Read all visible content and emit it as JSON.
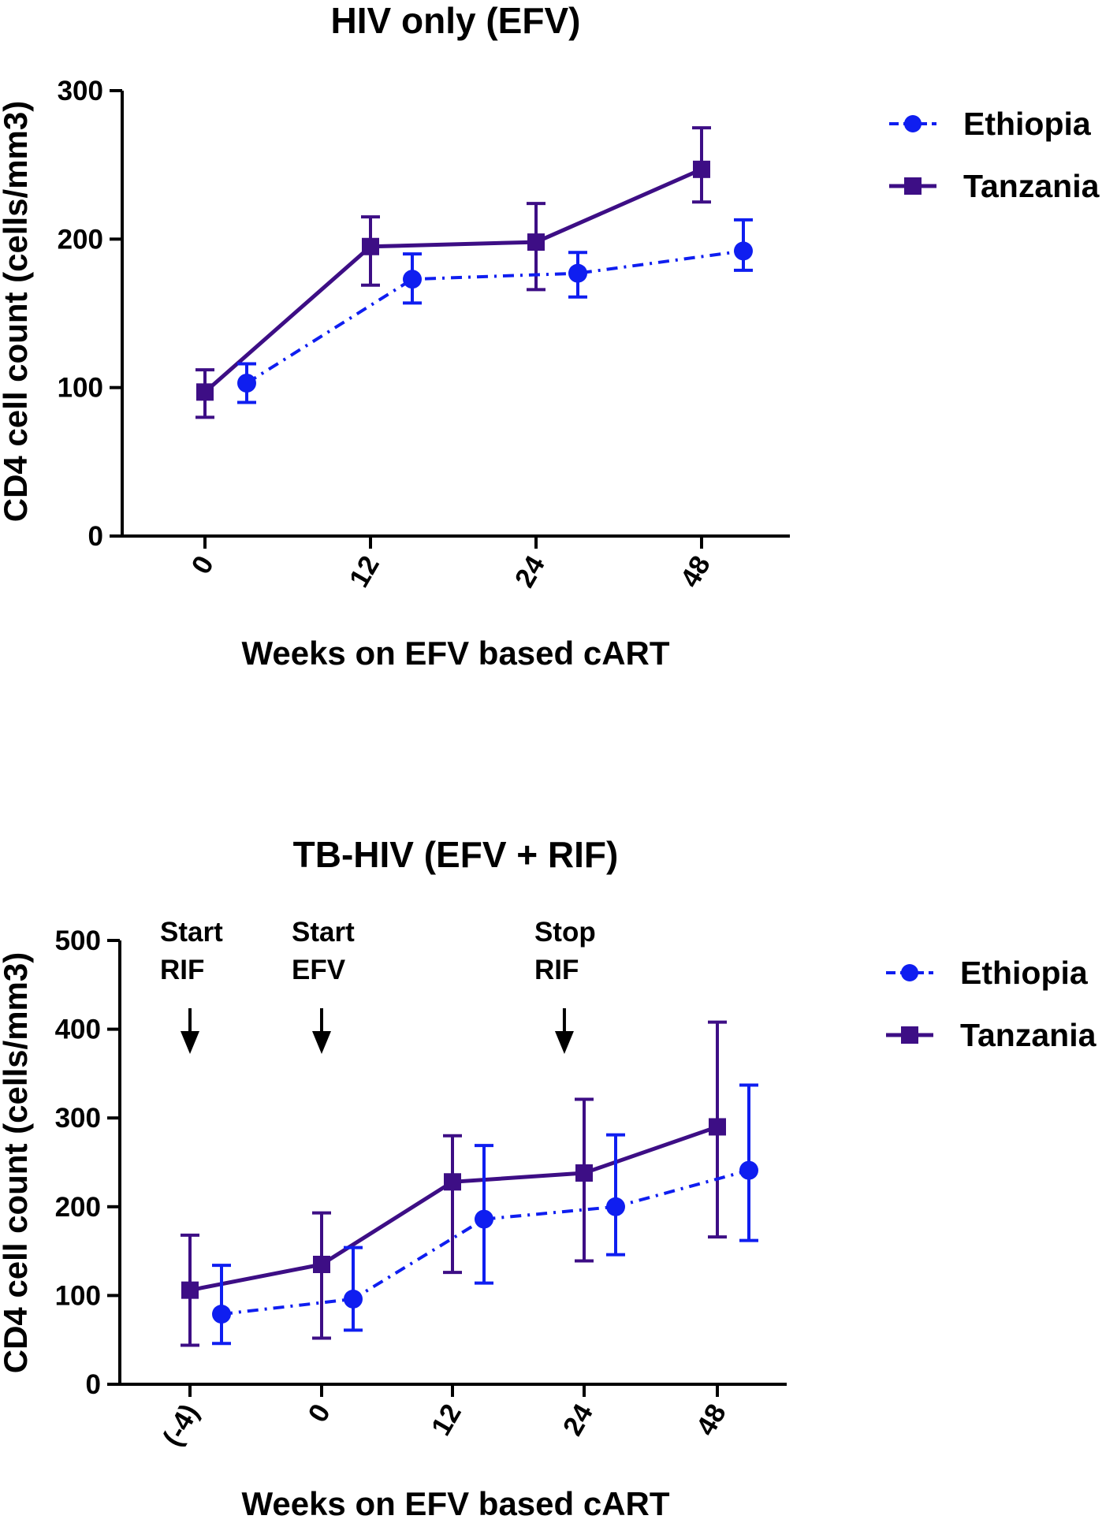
{
  "chart_data": [
    {
      "type": "line",
      "title": "HIV only (EFV)",
      "xlabel": "Weeks on EFV based cART",
      "ylabel": "CD4 cell count (cells/mm3)",
      "categories": [
        "0",
        "12",
        "24",
        "48"
      ],
      "ylim": [
        0,
        300
      ],
      "yticks": [
        0,
        100,
        200,
        300
      ],
      "grid": false,
      "legend_position": "top-right",
      "series": [
        {
          "name": "Ethiopia",
          "color": "#0f1ef0",
          "marker": "circle",
          "line_style": "dash-dot",
          "values": [
            103,
            173,
            177,
            192
          ],
          "error_low": [
            90,
            157,
            161,
            179
          ],
          "error_high": [
            116,
            190,
            191,
            213
          ]
        },
        {
          "name": "Tanzania",
          "color": "#3d0e85",
          "marker": "square",
          "line_style": "solid",
          "values": [
            97,
            195,
            198,
            247
          ],
          "error_low": [
            80,
            169,
            166,
            225
          ],
          "error_high": [
            112,
            215,
            224,
            275
          ]
        }
      ]
    },
    {
      "type": "line",
      "title": "TB-HIV (EFV + RIF)",
      "xlabel": "Weeks on EFV based cART",
      "ylabel": "CD4 cell count (cells/mm3)",
      "categories": [
        "(-4)",
        "0",
        "12",
        "24",
        "48"
      ],
      "ylim": [
        0,
        500
      ],
      "yticks": [
        0,
        100,
        200,
        300,
        400,
        500
      ],
      "grid": false,
      "legend_position": "top-right",
      "annotations": [
        {
          "lines": [
            "Start",
            "RIF"
          ],
          "category_index": 0
        },
        {
          "lines": [
            "Start",
            "EFV"
          ],
          "category_index": 1
        },
        {
          "lines": [
            "Stop",
            "RIF"
          ],
          "category_index": 2.85
        }
      ],
      "series": [
        {
          "name": "Ethiopia",
          "color": "#0f1ef0",
          "marker": "circle",
          "line_style": "dash-dot",
          "values": [
            79,
            96,
            186,
            200,
            241
          ],
          "error_low": [
            46,
            61,
            114,
            146,
            162
          ],
          "error_high": [
            134,
            154,
            269,
            281,
            337
          ]
        },
        {
          "name": "Tanzania",
          "color": "#3d0e85",
          "marker": "square",
          "line_style": "solid",
          "values": [
            106,
            135,
            228,
            238,
            290
          ],
          "error_low": [
            44,
            52,
            126,
            139,
            166
          ],
          "error_high": [
            168,
            193,
            280,
            321,
            408
          ]
        }
      ]
    }
  ]
}
